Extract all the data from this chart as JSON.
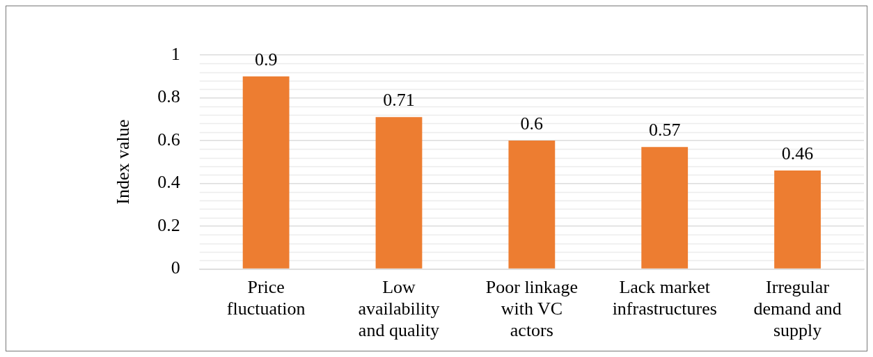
{
  "chart_data": {
    "type": "bar",
    "ylabel": "Index value",
    "categories": [
      "Price fluctuation",
      "Low availability and quality",
      "Poor linkage with VC actors",
      "Lack market infrastructures",
      "Irregular demand and supply"
    ],
    "values": [
      0.9,
      0.71,
      0.6,
      0.57,
      0.46
    ],
    "color": "#ed7d31",
    "ylim": [
      0,
      1
    ],
    "yticks": [
      0,
      0.2,
      0.4,
      0.6,
      0.8,
      1
    ],
    "grid": "y",
    "data_labels": true,
    "legend": false
  }
}
